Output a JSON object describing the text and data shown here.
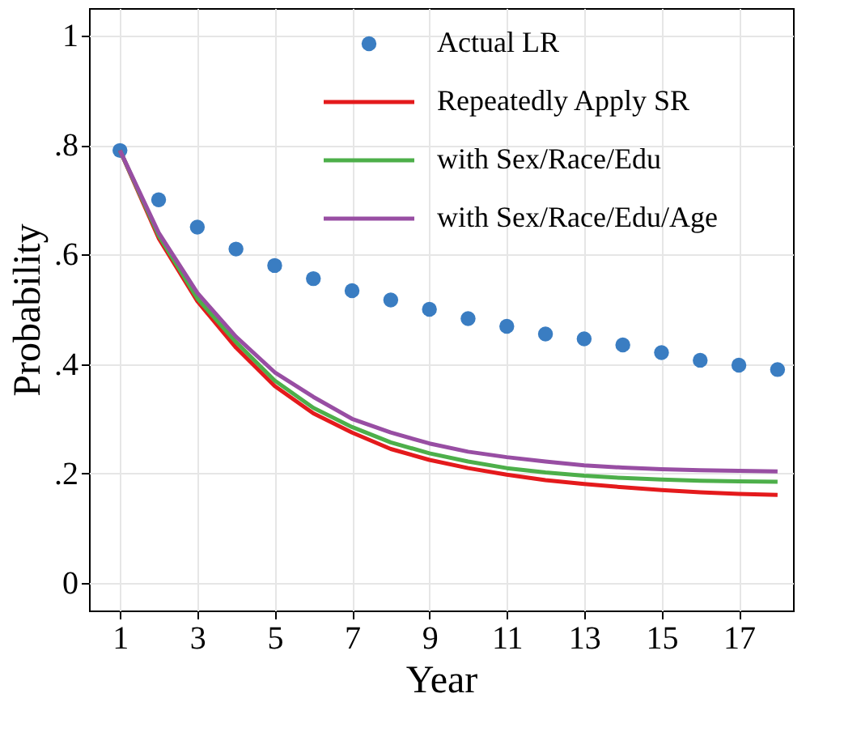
{
  "chart_data": {
    "type": "line",
    "xlabel": "Year",
    "ylabel": "Probability",
    "x": [
      1,
      2,
      3,
      4,
      5,
      6,
      7,
      8,
      9,
      10,
      11,
      12,
      13,
      14,
      15,
      16,
      17,
      18
    ],
    "series": [
      {
        "name": "Actual LR",
        "type": "scatter",
        "marker": "circle",
        "color": "#3a7dc2",
        "values": [
          0.79,
          0.7,
          0.65,
          0.61,
          0.58,
          0.556,
          0.534,
          0.517,
          0.5,
          0.483,
          0.469,
          0.455,
          0.446,
          0.435,
          0.421,
          0.407,
          0.398,
          0.39
        ]
      },
      {
        "name": "Repeatedly Apply SR",
        "color": "#e41a1c",
        "values": [
          0.79,
          0.63,
          0.515,
          0.43,
          0.36,
          0.31,
          0.275,
          0.245,
          0.225,
          0.21,
          0.198,
          0.188,
          0.181,
          0.175,
          0.17,
          0.166,
          0.163,
          0.161
        ]
      },
      {
        "name": "with Sex/Race/Edu",
        "color": "#4daf4a",
        "values": [
          0.79,
          0.635,
          0.52,
          0.44,
          0.37,
          0.32,
          0.285,
          0.257,
          0.237,
          0.222,
          0.21,
          0.202,
          0.196,
          0.192,
          0.189,
          0.187,
          0.186,
          0.185
        ]
      },
      {
        "name": "with Sex/Race/Edu/Age",
        "color": "#984ea3",
        "values": [
          0.79,
          0.64,
          0.53,
          0.45,
          0.385,
          0.34,
          0.3,
          0.275,
          0.255,
          0.24,
          0.23,
          0.222,
          0.215,
          0.211,
          0.208,
          0.206,
          0.205,
          0.204
        ]
      }
    ],
    "xlim": [
      0.2,
      18.4
    ],
    "xticks": [
      1,
      3,
      5,
      7,
      9,
      11,
      13,
      15,
      17
    ],
    "ylim": [
      -0.05,
      1.05
    ],
    "yticks": [
      {
        "value": 0,
        "label": "0"
      },
      {
        "value": 0.2,
        "label": ".2"
      },
      {
        "value": 0.4,
        "label": ".4"
      },
      {
        "value": 0.6,
        "label": ".6"
      },
      {
        "value": 0.8,
        "label": ".8"
      },
      {
        "value": 1,
        "label": "1"
      }
    ],
    "grid": true,
    "legend": "top right",
    "line_style": "solid"
  }
}
